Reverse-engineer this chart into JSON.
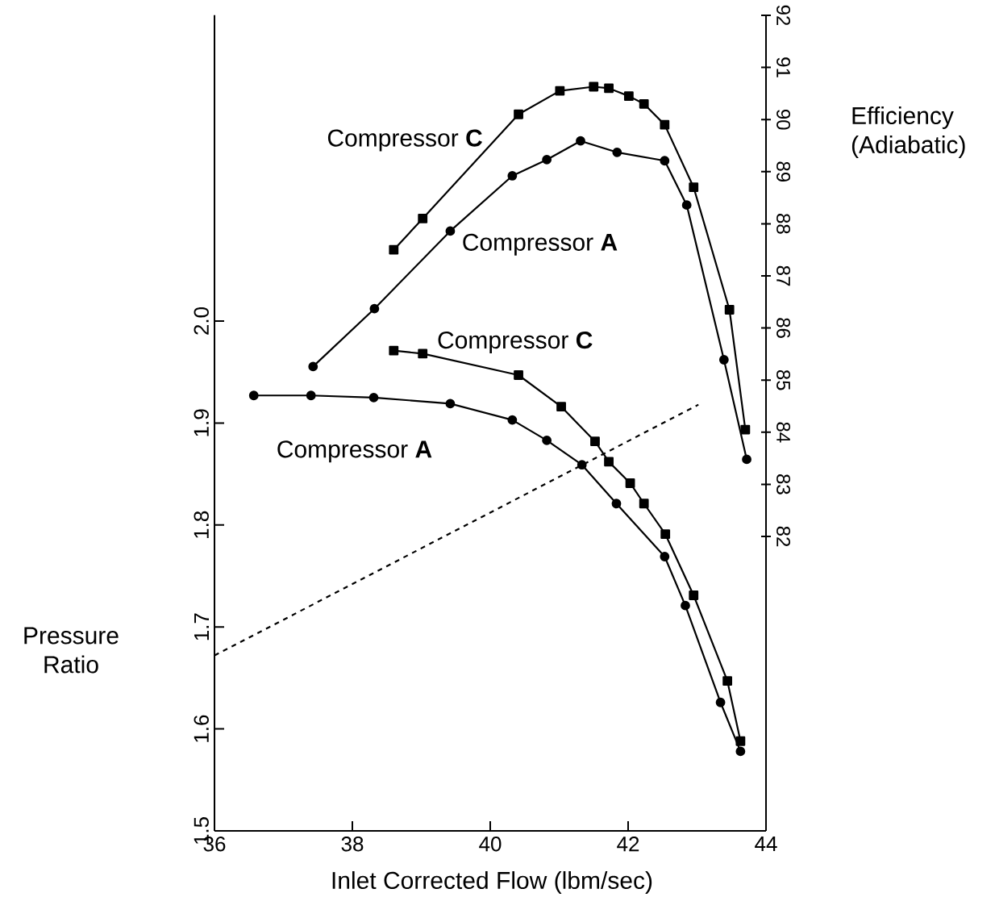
{
  "chart_data": {
    "type": "line",
    "xlabel": "Inlet Corrected Flow (lbm/sec)",
    "ylabel": "Pressure Ratio",
    "y2label": "Efficiency (Adiabatic)",
    "xlim": [
      36,
      44
    ],
    "xticks": [
      36,
      38,
      40,
      42,
      44
    ],
    "ylim": [
      1.5,
      2.3
    ],
    "yticks": [
      1.5,
      1.6,
      1.7,
      1.8,
      1.9,
      {
        "value": 2.0,
        "label": "2.0"
      }
    ],
    "y2lim": [
      76.35,
      92
    ],
    "y2ticks": [
      82,
      83,
      84,
      85,
      86,
      87,
      88,
      89,
      90,
      91,
      92
    ],
    "series": [
      {
        "name": "Compressor **C**",
        "color": "#000000",
        "axis": "y2",
        "marker": "square",
        "x": [
          38.6,
          39.02,
          40.41,
          41.01,
          41.5,
          41.72,
          42.01,
          42.23,
          42.53,
          42.95,
          43.47,
          43.7
        ],
        "values": [
          87.5,
          88.1,
          90.1,
          90.55,
          90.63,
          90.6,
          90.45,
          90.3,
          89.9,
          88.7,
          86.35,
          84.05
        ]
      },
      {
        "name": "Compressor **A**",
        "color": "#000000",
        "axis": "y2",
        "marker": "circle",
        "x": [
          37.43,
          38.32,
          39.42,
          40.32,
          40.82,
          41.31,
          41.84,
          42.53,
          42.85,
          43.39,
          43.72
        ],
        "values": [
          85.26,
          86.37,
          87.86,
          88.92,
          89.23,
          89.59,
          89.37,
          89.21,
          88.36,
          85.39,
          83.48
        ]
      },
      {
        "name": "Compressor **C**",
        "color": "#000000",
        "marker": "square",
        "x": [
          38.6,
          39.02,
          40.41,
          41.03,
          41.52,
          41.72,
          42.03,
          42.23,
          42.54,
          42.95,
          43.44,
          43.63
        ],
        "values": [
          1.971,
          1.968,
          1.947,
          1.916,
          1.882,
          1.862,
          1.841,
          1.821,
          1.791,
          1.731,
          1.647,
          1.588
        ]
      },
      {
        "name": "Compressor **A**",
        "color": "#000000",
        "marker": "circle",
        "x": [
          36.57,
          37.4,
          38.31,
          39.42,
          40.32,
          40.82,
          41.33,
          41.83,
          42.53,
          42.83,
          43.34,
          43.63
        ],
        "values": [
          1.927,
          1.927,
          1.925,
          1.919,
          1.903,
          1.883,
          1.859,
          1.821,
          1.769,
          1.721,
          1.626,
          1.578
        ]
      },
      {
        "color": "#000000",
        "marker": "none",
        "line_style": "dashed",
        "x": [
          36,
          43.02
        ],
        "values": [
          1.672,
          1.918
        ]
      }
    ]
  }
}
